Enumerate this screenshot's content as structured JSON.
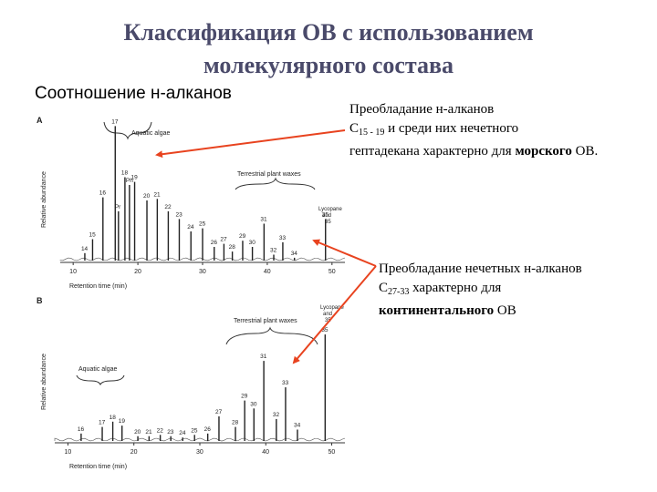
{
  "title": {
    "line1": "Классификация ОВ с использованием",
    "line2": "молекулярного состава"
  },
  "subtitle": "Соотношение н-алканов",
  "notes": {
    "marine": {
      "text1": "Преобладание н-алканов",
      "c": "C",
      "sub": "15 - 19",
      "text2": " и среди них нечетного",
      "text3": "гептадекана характерно для ",
      "bold": "морского",
      "text4": " ОВ."
    },
    "continental": {
      "text1": "Преобладание нечетных н-алканов",
      "c": "C",
      "sub": "27-33",
      "text2": " характерно для",
      "bold": "континентального",
      "text3": " ОВ"
    }
  },
  "colors": {
    "title": "#4a4a6a",
    "arrow": "#e8431f"
  },
  "panel_a": {
    "letter": "A",
    "ylabel": "Relative abundance",
    "xlabel": "Retention time (min)",
    "xticks": [
      "10",
      "20",
      "30",
      "40",
      "50"
    ],
    "annotations": {
      "algae": "Aquatic algae",
      "waxes": "Terrestrial plant waxes",
      "lycopane1": "Lycopane",
      "lycopane2": "and",
      "lycopane3": "35"
    }
  },
  "panel_b": {
    "letter": "B",
    "ylabel": "Relative abundance",
    "xlabel": "Retention time (min)",
    "xticks": [
      "10",
      "20",
      "30",
      "40",
      "50"
    ],
    "annotations": {
      "algae": "Aquatic algae",
      "waxes": "Terrestrial plant waxes",
      "lycopane1": "Lycopane",
      "lycopane2": "and",
      "lycopane3": "35"
    }
  },
  "chart_data": [
    {
      "type": "bar",
      "panel": "A",
      "xlabel": "Retention time (min)",
      "ylabel": "Relative abundance",
      "xlim": [
        8,
        52
      ],
      "ylim": [
        0,
        1
      ],
      "peaks": [
        {
          "label": "14",
          "x": 11.8,
          "y": 0.06
        },
        {
          "label": "15",
          "x": 13.0,
          "y": 0.15
        },
        {
          "label": "16",
          "x": 14.6,
          "y": 0.42
        },
        {
          "label": "17",
          "x": 16.5,
          "y": 0.88
        },
        {
          "label": "Pr",
          "x": 17.0,
          "y": 0.33
        },
        {
          "label": "18",
          "x": 18.0,
          "y": 0.55
        },
        {
          "label": "Ph",
          "x": 18.7,
          "y": 0.5
        },
        {
          "label": "19",
          "x": 19.5,
          "y": 0.52
        },
        {
          "label": "20",
          "x": 21.4,
          "y": 0.4
        },
        {
          "label": "21",
          "x": 23.0,
          "y": 0.41
        },
        {
          "label": "22",
          "x": 24.7,
          "y": 0.33
        },
        {
          "label": "23",
          "x": 26.4,
          "y": 0.28
        },
        {
          "label": "24",
          "x": 28.2,
          "y": 0.2
        },
        {
          "label": "25",
          "x": 30.0,
          "y": 0.22
        },
        {
          "label": "26",
          "x": 31.8,
          "y": 0.1
        },
        {
          "label": "27",
          "x": 33.3,
          "y": 0.12
        },
        {
          "label": "28",
          "x": 34.6,
          "y": 0.07
        },
        {
          "label": "29",
          "x": 36.2,
          "y": 0.14
        },
        {
          "label": "30",
          "x": 37.7,
          "y": 0.1
        },
        {
          "label": "31",
          "x": 39.5,
          "y": 0.25
        },
        {
          "label": "32",
          "x": 41.0,
          "y": 0.05
        },
        {
          "label": "33",
          "x": 42.4,
          "y": 0.13
        },
        {
          "label": "34",
          "x": 44.2,
          "y": 0.03
        },
        {
          "label": "35",
          "x": 49.0,
          "y": 0.28
        }
      ]
    },
    {
      "type": "bar",
      "panel": "B",
      "xlabel": "Retention time (min)",
      "ylabel": "Relative abundance",
      "xlim": [
        8,
        52
      ],
      "ylim": [
        0,
        1
      ],
      "peaks": [
        {
          "label": "16",
          "x": 12.0,
          "y": 0.07
        },
        {
          "label": "17",
          "x": 15.2,
          "y": 0.12
        },
        {
          "label": "18",
          "x": 16.8,
          "y": 0.16
        },
        {
          "label": "19",
          "x": 18.2,
          "y": 0.13
        },
        {
          "label": "20",
          "x": 20.6,
          "y": 0.05
        },
        {
          "label": "21",
          "x": 22.3,
          "y": 0.05
        },
        {
          "label": "22",
          "x": 24.0,
          "y": 0.06
        },
        {
          "label": "23",
          "x": 25.6,
          "y": 0.05
        },
        {
          "label": "24",
          "x": 27.4,
          "y": 0.04
        },
        {
          "label": "25",
          "x": 29.2,
          "y": 0.06
        },
        {
          "label": "26",
          "x": 31.2,
          "y": 0.07
        },
        {
          "label": "27",
          "x": 32.9,
          "y": 0.2
        },
        {
          "label": "28",
          "x": 35.4,
          "y": 0.12
        },
        {
          "label": "29",
          "x": 36.8,
          "y": 0.32
        },
        {
          "label": "30",
          "x": 38.2,
          "y": 0.26
        },
        {
          "label": "31",
          "x": 39.7,
          "y": 0.62
        },
        {
          "label": "32",
          "x": 41.6,
          "y": 0.18
        },
        {
          "label": "33",
          "x": 43.0,
          "y": 0.42
        },
        {
          "label": "34",
          "x": 44.8,
          "y": 0.1
        },
        {
          "label": "35",
          "x": 49.0,
          "y": 0.82
        }
      ]
    }
  ]
}
